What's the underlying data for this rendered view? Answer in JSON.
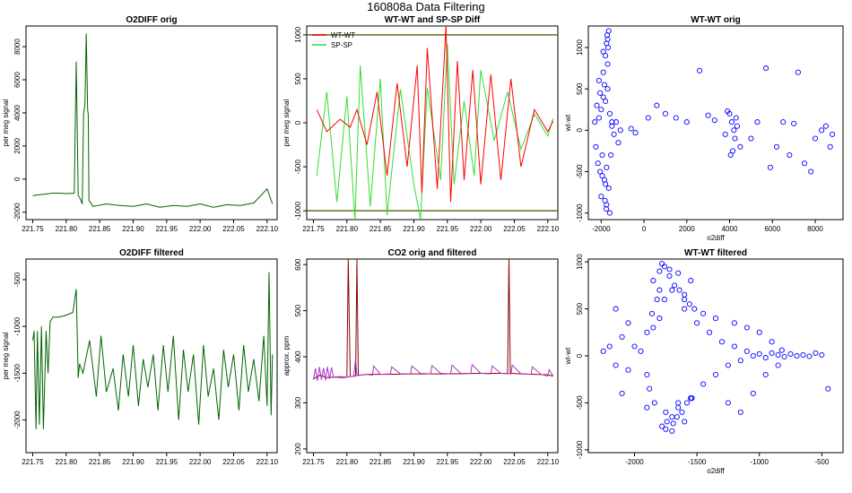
{
  "suptitle": "160808a   Data Filtering",
  "chart_data": [
    {
      "type": "line",
      "title": "O2DIFF orig",
      "xlabel": "",
      "ylabel": "per meg signal",
      "xlim": [
        221.74,
        222.115
      ],
      "ylim": [
        -2450,
        9250
      ],
      "xticks": [
        221.75,
        221.8,
        221.85,
        221.9,
        221.95,
        222.0,
        222.05,
        222.1
      ],
      "yticks": [
        -2000,
        0,
        2000,
        4000,
        6000,
        8000
      ],
      "color": "#006400",
      "series": [
        {
          "name": "O2DIFF",
          "x": [
            221.75,
            221.77,
            221.78,
            221.79,
            221.8,
            221.812,
            221.815,
            221.818,
            221.82,
            221.822,
            221.824,
            221.826,
            221.828,
            221.83,
            221.832,
            221.833,
            221.834,
            221.836,
            221.84,
            221.86,
            221.88,
            221.9,
            221.92,
            221.94,
            221.96,
            221.98,
            222.0,
            222.02,
            222.04,
            222.06,
            222.08,
            222.1,
            222.108
          ],
          "y": [
            -1000,
            -900,
            -850,
            -850,
            -880,
            -850,
            7100,
            -1000,
            -1100,
            -1300,
            -1500,
            3900,
            4500,
            8800,
            4200,
            3900,
            -1300,
            -1400,
            -1650,
            -1500,
            -1600,
            -1650,
            -1500,
            -1700,
            -1600,
            -1650,
            -1500,
            -1700,
            -1550,
            -1600,
            -1450,
            -600,
            -1500
          ]
        }
      ]
    },
    {
      "type": "line",
      "title": "WT-WT and SP-SP Diff",
      "xlabel": "",
      "ylabel": "per meg signal",
      "xlim": [
        221.74,
        222.115
      ],
      "ylim": [
        -1100,
        1100
      ],
      "xticks": [
        221.75,
        221.8,
        221.85,
        221.9,
        221.95,
        222.0,
        222.05,
        222.1
      ],
      "yticks": [
        -1000,
        -500,
        0,
        500,
        1000
      ],
      "hlines": [
        1000,
        -1000
      ],
      "hline_color": "#6b6b1a",
      "legend": [
        {
          "name": "WT-WT",
          "color": "#ff0000"
        },
        {
          "name": "SP-SP",
          "color": "#33dd33"
        }
      ],
      "legend_position": "top-left",
      "series": [
        {
          "name": "SP-SP",
          "color": "#33dd33",
          "x": [
            221.755,
            221.77,
            221.785,
            221.8,
            221.812,
            221.82,
            221.835,
            221.85,
            221.86,
            221.88,
            221.9,
            221.91,
            221.92,
            221.94,
            221.95,
            221.96,
            221.975,
            221.99,
            222.0,
            222.02,
            222.04,
            222.06,
            222.08,
            222.1,
            222.108
          ],
          "y": [
            -600,
            350,
            -900,
            300,
            -1100,
            650,
            -950,
            500,
            -1050,
            380,
            -700,
            -1100,
            400,
            -650,
            900,
            -700,
            250,
            -600,
            600,
            -200,
            350,
            -300,
            100,
            -150,
            50
          ]
        },
        {
          "name": "WT-WT",
          "color": "#ff0000",
          "x": [
            221.755,
            221.77,
            221.79,
            221.805,
            221.815,
            221.83,
            221.845,
            221.86,
            221.875,
            221.89,
            221.905,
            221.912,
            221.92,
            221.935,
            221.948,
            221.955,
            221.965,
            221.975,
            221.988,
            222.0,
            222.015,
            222.03,
            222.045,
            222.06,
            222.08,
            222.1,
            222.108
          ],
          "y": [
            150,
            -100,
            40,
            -50,
            150,
            -250,
            350,
            -600,
            450,
            -500,
            650,
            -800,
            850,
            -750,
            1100,
            -900,
            700,
            -650,
            600,
            -700,
            550,
            -650,
            500,
            -500,
            150,
            -100,
            20
          ]
        }
      ]
    },
    {
      "type": "scatter",
      "title": "WT-WT orig",
      "xlabel": "o2diff",
      "ylabel": "wt-wt",
      "xlim": [
        -2600,
        9300
      ],
      "ylim": [
        -1080,
        1260
      ],
      "xticks": [
        -2000,
        0,
        2000,
        4000,
        6000,
        8000
      ],
      "yticks": [
        -1000,
        -500,
        0,
        500,
        1000
      ],
      "color": "#0000ff",
      "points_x": [
        -2300,
        -2250,
        -2200,
        -2150,
        -2100,
        -2050,
        -2000,
        -1950,
        -1900,
        -1850,
        -1800,
        -1750,
        -1700,
        -1650,
        -1600,
        -1550,
        -1500,
        -2100,
        -2000,
        -1900,
        -1800,
        -1700,
        -1750,
        -1850,
        -1950,
        -2050,
        -1700,
        -1650,
        -1600,
        -1800,
        -1900,
        -1750,
        -1720,
        -1680,
        -1760,
        -1820,
        -1500,
        -1400,
        -1300,
        -1200,
        -1100,
        -600,
        -400,
        200,
        600,
        1000,
        1500,
        2000,
        2600,
        3000,
        3300,
        3800,
        3900,
        4000,
        4100,
        4200,
        4250,
        4300,
        4150,
        4050,
        4350,
        4500,
        5000,
        5300,
        5700,
        5900,
        6200,
        6500,
        6800,
        7000,
        7200,
        7500,
        7800,
        8000,
        8300,
        8500,
        8700,
        8800
      ],
      "points_y": [
        100,
        -200,
        300,
        -400,
        150,
        -500,
        250,
        -300,
        400,
        -600,
        350,
        -450,
        500,
        -700,
        200,
        -300,
        100,
        600,
        -800,
        700,
        -650,
        800,
        -900,
        550,
        -550,
        450,
        1100,
        1200,
        -1000,
        900,
        950,
        1050,
        1150,
        1000,
        -950,
        -850,
        50,
        -50,
        100,
        -150,
        0,
        20,
        -30,
        150,
        300,
        200,
        150,
        100,
        720,
        180,
        120,
        -50,
        230,
        200,
        100,
        0,
        -100,
        150,
        -250,
        -300,
        50,
        -200,
        -100,
        100,
        750,
        -450,
        -200,
        100,
        -300,
        80,
        700,
        -400,
        -500,
        -100,
        0,
        50,
        -200,
        -50
      ]
    },
    {
      "type": "line",
      "title": "O2DIFF filtered",
      "xlabel": "",
      "ylabel": "per meg signal",
      "xlim": [
        221.74,
        222.115
      ],
      "ylim": [
        -2350,
        -280
      ],
      "xticks": [
        221.75,
        221.8,
        221.85,
        221.9,
        221.95,
        222.0,
        222.05,
        222.1
      ],
      "yticks": [
        -2000,
        -1500,
        -1000,
        -500
      ],
      "color": "#006400",
      "series": [
        {
          "name": "O2DIFF",
          "x": [
            221.75,
            221.752,
            221.755,
            221.757,
            221.76,
            221.763,
            221.766,
            221.77,
            221.773,
            221.776,
            221.78,
            221.79,
            221.8,
            221.81,
            221.815,
            221.818,
            221.82,
            221.825,
            221.835,
            221.845,
            221.852,
            221.86,
            221.87,
            221.878,
            221.885,
            221.893,
            221.9,
            221.908,
            221.915,
            221.922,
            221.93,
            221.937,
            221.945,
            221.952,
            221.96,
            221.968,
            221.975,
            221.982,
            221.99,
            221.998,
            222.005,
            222.012,
            222.02,
            222.028,
            222.035,
            222.042,
            222.05,
            222.058,
            222.065,
            222.072,
            222.08,
            222.088,
            222.095,
            222.1,
            222.103,
            222.106,
            222.108
          ],
          "y": [
            -1150,
            -1050,
            -2100,
            -1050,
            -2050,
            -1000,
            -2100,
            -1050,
            -1500,
            -950,
            -900,
            -900,
            -880,
            -850,
            -600,
            -1550,
            -1400,
            -1500,
            -1150,
            -1750,
            -1100,
            -1700,
            -1450,
            -1900,
            -1300,
            -1750,
            -1200,
            -1850,
            -1350,
            -1650,
            -1300,
            -1900,
            -1200,
            -1700,
            -1100,
            -2000,
            -1250,
            -1700,
            -1300,
            -2050,
            -1200,
            -1750,
            -1450,
            -2000,
            -1250,
            -1650,
            -1300,
            -1900,
            -1200,
            -1700,
            -1350,
            -1800,
            -1100,
            -1850,
            -420,
            -1950,
            -1300
          ]
        }
      ]
    },
    {
      "type": "line",
      "title": "CO2 orig and filtered",
      "xlabel": "",
      "ylabel": "approx. ppm",
      "xlim": [
        221.74,
        222.115
      ],
      "ylim": [
        192,
        612
      ],
      "xticks": [
        221.75,
        221.8,
        221.85,
        221.9,
        221.95,
        222.0,
        222.05,
        222.1
      ],
      "yticks": [
        200,
        300,
        400,
        500,
        600
      ],
      "series": [
        {
          "name": "CO2 orig",
          "color": "#8b0000",
          "x": [
            221.75,
            221.76,
            221.77,
            221.78,
            221.795,
            221.8,
            221.802,
            221.805,
            221.813,
            221.815,
            221.817,
            221.83,
            221.86,
            221.9,
            221.95,
            222.0,
            222.04,
            222.042,
            222.044,
            222.06,
            222.08,
            222.1,
            222.108
          ],
          "y": [
            352,
            360,
            355,
            356,
            355,
            356,
            612,
            357,
            358,
            612,
            360,
            362,
            362,
            363,
            363,
            364,
            364,
            612,
            364,
            363,
            362,
            361,
            358
          ]
        },
        {
          "name": "CO2 filtered",
          "color": "#aa33cc",
          "x": [
            221.75,
            221.753,
            221.756,
            221.759,
            221.762,
            221.765,
            221.768,
            221.771,
            221.774,
            221.777,
            221.78,
            221.79,
            221.8,
            221.81,
            221.813,
            221.815,
            221.82,
            221.83,
            221.838,
            221.84,
            221.85,
            221.865,
            221.867,
            221.88,
            221.895,
            221.897,
            221.91,
            221.925,
            221.927,
            221.94,
            221.955,
            221.957,
            221.97,
            221.985,
            221.987,
            222.0,
            222.015,
            222.017,
            222.03,
            222.045,
            222.047,
            222.06,
            222.075,
            222.077,
            222.09,
            222.1,
            222.102,
            222.108
          ],
          "y": [
            350,
            375,
            348,
            378,
            350,
            376,
            349,
            378,
            352,
            377,
            356,
            357,
            356,
            358,
            395,
            359,
            360,
            362,
            360,
            380,
            362,
            363,
            378,
            363,
            363,
            380,
            364,
            363,
            381,
            364,
            363,
            382,
            364,
            364,
            383,
            364,
            363,
            380,
            364,
            363,
            382,
            363,
            362,
            378,
            362,
            358,
            372,
            358
          ]
        }
      ]
    },
    {
      "type": "scatter",
      "title": "WT-WT filtered",
      "xlabel": "o2diff",
      "ylabel": "wt-wt",
      "xlim": [
        -2370,
        -330
      ],
      "ylim": [
        -1030,
        1030
      ],
      "xticks": [
        -2000,
        -1500,
        -1000,
        -500
      ],
      "yticks": [
        -1000,
        -500,
        0,
        500,
        1000
      ],
      "color": "#0000ff",
      "points_x": [
        -2250,
        -2200,
        -2150,
        -2100,
        -2050,
        -2000,
        -1950,
        -1900,
        -1850,
        -1800,
        -1750,
        -1700,
        -1650,
        -1600,
        -1550,
        -1500,
        -1450,
        -1400,
        -1350,
        -1300,
        -1250,
        -1200,
        -1150,
        -1100,
        -1050,
        -1000,
        -950,
        -900,
        -850,
        -800,
        -750,
        -700,
        -650,
        -600,
        -550,
        -500,
        -450,
        -2150,
        -2100,
        -2050,
        -1900,
        -1850,
        -1800,
        -1780,
        -1760,
        -1740,
        -1720,
        -1700,
        -1680,
        -1660,
        -1640,
        -1620,
        -1600,
        -1580,
        -1560,
        -1540,
        -1520,
        -1820,
        -1840,
        -1860,
        -1880,
        -1900,
        -1780,
        -1750,
        -1720,
        -1690,
        -1650,
        -1600,
        -1550,
        -1450,
        -1350,
        -1250,
        -1200,
        -1150,
        -1100,
        -1050,
        -1000,
        -950,
        -900,
        -850,
        -820,
        -1800,
        -1760,
        -1700,
        -1650,
        -1600,
        -1550
      ],
      "points_y": [
        50,
        100,
        -100,
        200,
        -150,
        100,
        50,
        -200,
        300,
        400,
        -600,
        700,
        -500,
        600,
        -450,
        350,
        -300,
        250,
        -200,
        150,
        -100,
        100,
        -50,
        50,
        0,
        20,
        -20,
        30,
        10,
        -10,
        20,
        0,
        10,
        -5,
        30,
        10,
        -350,
        500,
        -400,
        350,
        -550,
        800,
        900,
        -750,
        950,
        -700,
        850,
        -800,
        750,
        -650,
        700,
        -600,
        650,
        -500,
        550,
        -450,
        500,
        600,
        -500,
        450,
        -350,
        250,
        980,
        -780,
        920,
        -720,
        880,
        -700,
        800,
        450,
        400,
        -500,
        350,
        -600,
        300,
        -400,
        250,
        -200,
        150,
        -100,
        60,
        700,
        600,
        -650,
        -550,
        500,
        -450
      ]
    }
  ]
}
